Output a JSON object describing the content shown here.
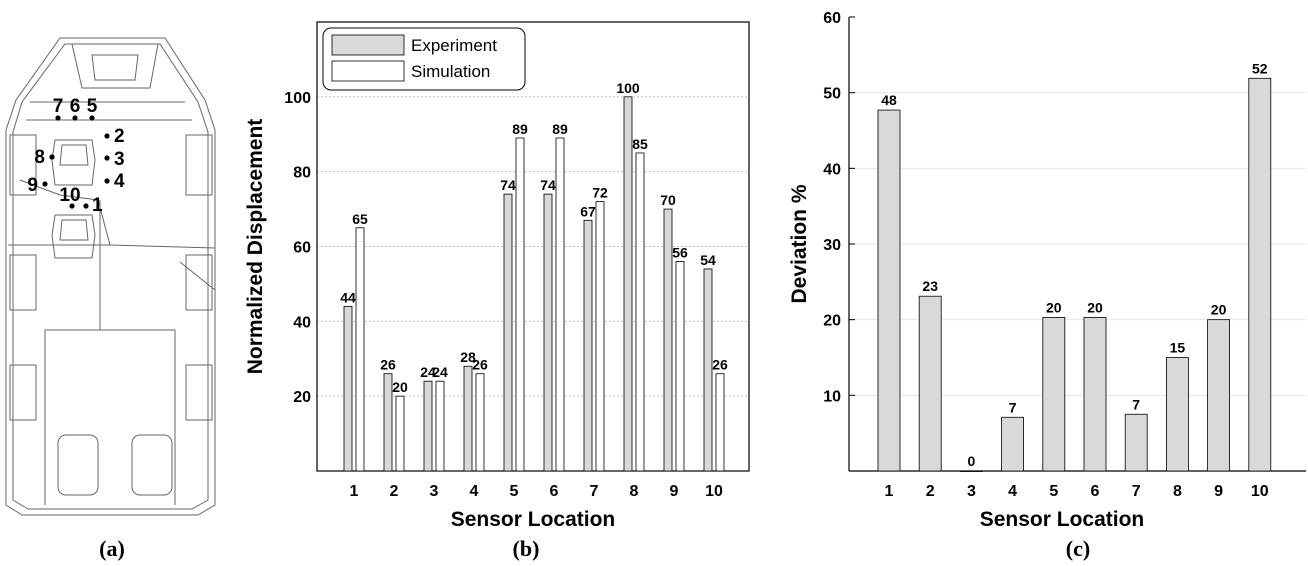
{
  "panels": {
    "a": {
      "label": "(a)",
      "sensors": [
        {
          "id": "7",
          "label": "7"
        },
        {
          "id": "6",
          "label": "6"
        },
        {
          "id": "5",
          "label": "5"
        },
        {
          "id": "2",
          "label": "2"
        },
        {
          "id": "8",
          "label": "8"
        },
        {
          "id": "3",
          "label": "3"
        },
        {
          "id": "4",
          "label": "4"
        },
        {
          "id": "9",
          "label": "9"
        },
        {
          "id": "10",
          "label": "10"
        },
        {
          "id": "1",
          "label": "1"
        }
      ]
    },
    "b": {
      "label": "(b)"
    },
    "c": {
      "label": "(c)"
    }
  },
  "colors": {
    "experiment": "#d9d9d9",
    "simulation": "#ffffff",
    "deviation": "#d9d9d9",
    "grid": "#bfbfbf"
  },
  "chart_data": [
    {
      "type": "bar",
      "panel": "b",
      "title": "",
      "xlabel": "Sensor Location",
      "ylabel": "Normalized Displacement",
      "categories": [
        "1",
        "2",
        "3",
        "4",
        "5",
        "6",
        "7",
        "8",
        "9",
        "10"
      ],
      "series": [
        {
          "name": "Experiment",
          "values": [
            44,
            26,
            24,
            28,
            74,
            74,
            67,
            100,
            70,
            54
          ]
        },
        {
          "name": "Simulation",
          "values": [
            65,
            20,
            24,
            26,
            89,
            89,
            72,
            85,
            56,
            26
          ]
        }
      ],
      "data_labels": [
        [
          "44",
          "26",
          "24",
          "28",
          "74",
          "74",
          "67",
          "100",
          "70",
          "54"
        ],
        [
          "65",
          "20",
          "24",
          "26",
          "89",
          "89",
          "72",
          "85",
          "56",
          "26"
        ]
      ],
      "ylim": [
        0,
        120
      ],
      "yticks": [
        "20",
        "40",
        "60",
        "80",
        "100"
      ],
      "grid": true,
      "legend": "top-left"
    },
    {
      "type": "bar",
      "panel": "c",
      "title": "",
      "xlabel": "Sensor Location",
      "ylabel": "Deviation %",
      "categories": [
        "1",
        "2",
        "3",
        "4",
        "5",
        "6",
        "7",
        "8",
        "9",
        "10"
      ],
      "values": [
        47.7,
        23.1,
        0,
        7.1,
        20.3,
        20.3,
        7.5,
        15,
        20,
        51.9
      ],
      "data_labels": [
        "48",
        "23",
        "0",
        "7",
        "20",
        "20",
        "7",
        "15",
        "20",
        "52"
      ],
      "ylim": [
        0,
        60
      ],
      "yticks": [
        "10",
        "20",
        "30",
        "40",
        "50",
        "60"
      ],
      "grid": true,
      "legend": "none"
    }
  ]
}
